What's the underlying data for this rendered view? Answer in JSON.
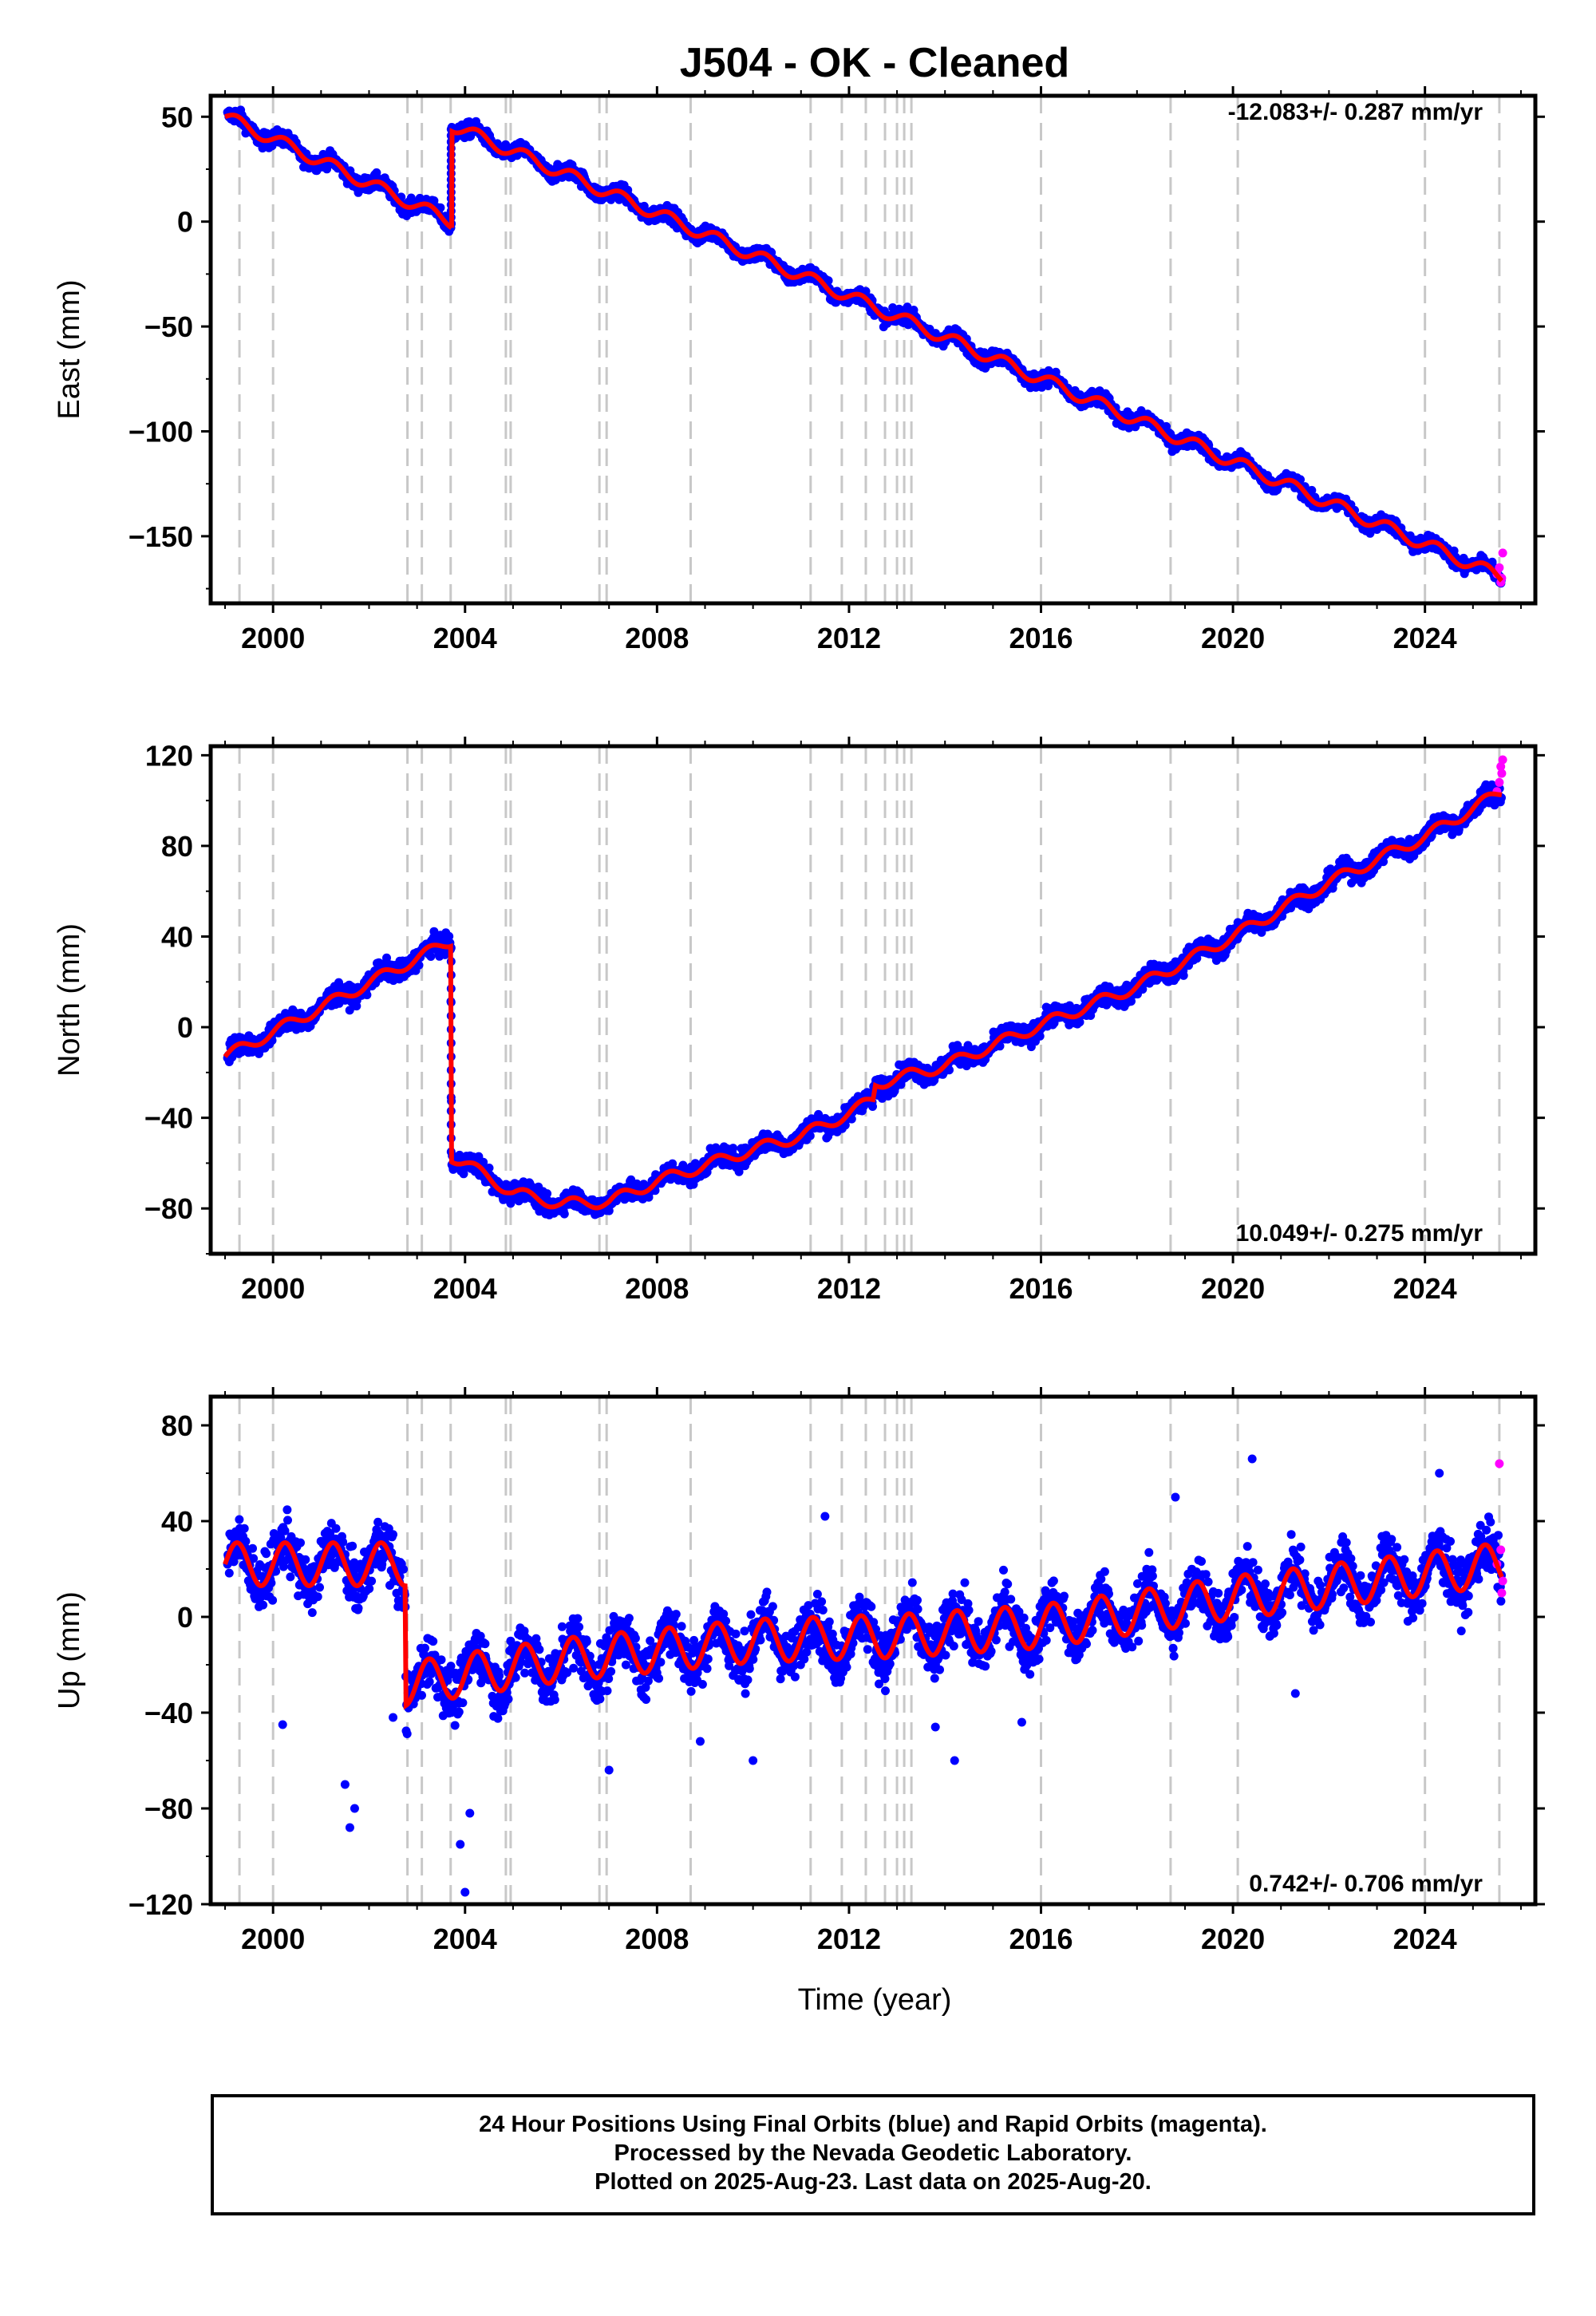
{
  "title": "J504  - OK - Cleaned",
  "xlabel": "Time (year)",
  "x_ticks": [
    "2000",
    "2004",
    "2008",
    "2012",
    "2016",
    "2020",
    "2024"
  ],
  "colors": {
    "final": "#0000ff",
    "rapid": "#ff00ff",
    "model": "#ff0000",
    "events": "#c8c8c8"
  },
  "caption": [
    "24 Hour Positions Using Final Orbits (blue) and Rapid Orbits (magenta).",
    "Processed by the Nevada Geodetic Laboratory.",
    "Plotted on 2025-Aug-23. Last data on 2025-Aug-20."
  ],
  "chart_data": [
    {
      "type": "scatter",
      "id": "east",
      "ylabel": "East (mm)",
      "rate_label": "-12.083+/- 0.287 mm/yr",
      "xlim": [
        1998.7,
        2026.3
      ],
      "ylim": [
        -182,
        60
      ],
      "y_ticks": [
        50,
        0,
        -50,
        -100,
        -150
      ],
      "event_years": [
        1999.3,
        2000.0,
        2002.8,
        2003.1,
        2003.7,
        2004.85,
        2004.95,
        2006.8,
        2006.95,
        2008.7,
        2011.2,
        2011.85,
        2012.35,
        2012.75,
        2013.0,
        2013.15,
        2013.3,
        2016.0,
        2018.7,
        2020.1,
        2024.0,
        2025.55
      ],
      "model_segments": [
        {
          "t0": 1999.0,
          "t1": 2003.72,
          "y0": 50,
          "rate": -10.6,
          "amp": 3
        },
        {
          "t0": 2003.72,
          "t1": 2025.6,
          "y0": 46,
          "rate": -9.85,
          "amp": 3
        }
      ],
      "noise": 2.5,
      "rapid_points": [
        [
          2025.5,
          -168
        ],
        [
          2025.55,
          -165
        ],
        [
          2025.6,
          -170
        ],
        [
          2025.62,
          -158
        ],
        [
          2025.58,
          -172
        ]
      ],
      "series": [
        {
          "name": "Final Orbits",
          "color": "#0000ff"
        },
        {
          "name": "Rapid Orbits",
          "color": "#ff00ff"
        }
      ]
    },
    {
      "type": "scatter",
      "id": "north",
      "ylabel": "North (mm)",
      "rate_label": "10.049+/- 0.275 mm/yr",
      "xlim": [
        1998.7,
        2026.3
      ],
      "ylim": [
        -100,
        124
      ],
      "y_ticks": [
        120,
        80,
        40,
        0,
        -40,
        -80
      ],
      "event_years": [
        1999.3,
        2000.0,
        2002.8,
        2003.1,
        2003.7,
        2004.85,
        2004.95,
        2006.8,
        2006.95,
        2008.7,
        2011.2,
        2011.85,
        2012.35,
        2012.75,
        2013.0,
        2013.15,
        2013.3,
        2016.0,
        2018.7,
        2020.1,
        2024.0,
        2025.55
      ],
      "model_path": [
        [
          1999.0,
          -13
        ],
        [
          2003.7,
          38
        ],
        [
          2003.72,
          -57
        ],
        [
          2004.0,
          -60
        ],
        [
          2005.0,
          -73
        ],
        [
          2006.0,
          -78
        ],
        [
          2007.0,
          -77
        ],
        [
          2008.0,
          -68
        ],
        [
          2010.0,
          -54
        ],
        [
          2011.0,
          -48
        ],
        [
          2012.0,
          -38
        ],
        [
          2012.5,
          -32
        ],
        [
          2012.55,
          -25
        ],
        [
          2014.0,
          -17
        ],
        [
          2016.0,
          1
        ],
        [
          2018.0,
          18
        ],
        [
          2020.0,
          40
        ],
        [
          2022.0,
          64
        ],
        [
          2024.0,
          84
        ],
        [
          2025.6,
          104
        ]
      ],
      "amp": 2.5,
      "noise": 3,
      "rapid_points": [
        [
          2025.5,
          104
        ],
        [
          2025.55,
          108
        ],
        [
          2025.6,
          112
        ],
        [
          2025.62,
          118
        ],
        [
          2025.58,
          115
        ]
      ],
      "series": [
        {
          "name": "Final Orbits",
          "color": "#0000ff"
        },
        {
          "name": "Rapid Orbits",
          "color": "#ff00ff"
        }
      ]
    },
    {
      "type": "scatter",
      "id": "up",
      "ylabel": "Up (mm)",
      "rate_label": "0.742+/- 0.706 mm/yr",
      "xlim": [
        1998.7,
        2026.3
      ],
      "ylim": [
        -120,
        92
      ],
      "y_ticks": [
        80,
        40,
        0,
        -40,
        -80,
        -120
      ],
      "event_years": [
        1999.3,
        2000.0,
        2002.8,
        2003.1,
        2003.7,
        2004.85,
        2004.95,
        2006.8,
        2006.95,
        2008.7,
        2011.2,
        2011.85,
        2012.35,
        2012.75,
        2013.0,
        2013.15,
        2013.3,
        2016.0,
        2018.7,
        2020.1,
        2024.0,
        2025.55
      ],
      "model_path": [
        [
          1999.0,
          22
        ],
        [
          2002.75,
          22
        ],
        [
          2002.77,
          -28
        ],
        [
          2006.0,
          -18
        ],
        [
          2010.0,
          -10
        ],
        [
          2013.0,
          -8
        ],
        [
          2016.0,
          -4
        ],
        [
          2020.0,
          8
        ],
        [
          2024.0,
          18
        ],
        [
          2025.6,
          22
        ]
      ],
      "amp": 9,
      "noise": 8,
      "rapid_points": [
        [
          2025.55,
          64
        ],
        [
          2025.5,
          22
        ],
        [
          2025.6,
          10
        ],
        [
          2025.58,
          28
        ],
        [
          2025.62,
          15
        ]
      ],
      "outliers": [
        [
          2001.5,
          -70
        ],
        [
          2001.6,
          -88
        ],
        [
          2001.7,
          -80
        ],
        [
          2000.2,
          -45
        ],
        [
          2002.5,
          -42
        ],
        [
          2003.9,
          -95
        ],
        [
          2004.0,
          -115
        ],
        [
          2004.1,
          -82
        ],
        [
          2007.0,
          -64
        ],
        [
          2008.9,
          -52
        ],
        [
          2010.0,
          -60
        ],
        [
          2011.5,
          42
        ],
        [
          2013.8,
          -46
        ],
        [
          2014.2,
          -60
        ],
        [
          2015.6,
          -44
        ],
        [
          2018.8,
          50
        ],
        [
          2020.4,
          66
        ],
        [
          2021.3,
          -32
        ],
        [
          2024.3,
          60
        ]
      ],
      "series": [
        {
          "name": "Final Orbits",
          "color": "#0000ff"
        },
        {
          "name": "Rapid Orbits",
          "color": "#ff00ff"
        }
      ]
    }
  ]
}
